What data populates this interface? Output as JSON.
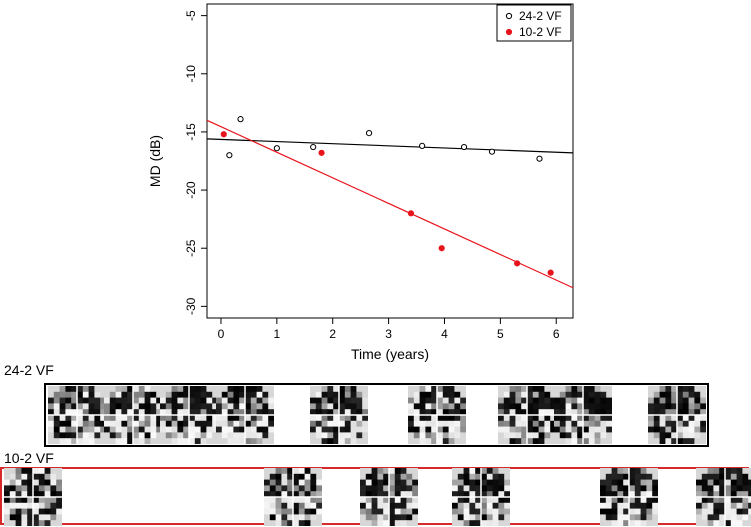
{
  "chart_data": {
    "type": "scatter",
    "xlabel": "Time (years)",
    "ylabel": "MD (dB)",
    "xlim": [
      -0.25,
      6.3
    ],
    "ylim": [
      -31,
      -4
    ],
    "xticks": [
      0,
      1,
      2,
      3,
      4,
      5,
      6
    ],
    "yticks": [
      -5,
      -10,
      -15,
      -20,
      -25,
      -30
    ],
    "legend_position": "top-right",
    "series": [
      {
        "name": "24-2 VF",
        "marker": "open-circle",
        "color": "#000000",
        "x": [
          0.15,
          0.35,
          1.0,
          1.65,
          2.65,
          3.6,
          4.35,
          4.85,
          5.7
        ],
        "y": [
          -17.0,
          -13.9,
          -16.4,
          -16.3,
          -15.1,
          -16.2,
          -16.3,
          -16.7,
          -17.3
        ],
        "trend": {
          "x": [
            -0.25,
            6.3
          ],
          "y": [
            -15.6,
            -16.8
          ]
        }
      },
      {
        "name": "10-2 VF",
        "marker": "filled-circle",
        "color": "#e8141c",
        "x": [
          0.05,
          1.8,
          3.4,
          3.95,
          5.3,
          5.9
        ],
        "y": [
          -15.2,
          -16.8,
          -22.0,
          -25.0,
          -26.3,
          -27.1
        ],
        "trend": {
          "x": [
            -0.25,
            6.3
          ],
          "y": [
            -14.0,
            -28.4
          ]
        }
      }
    ]
  },
  "strips": {
    "top_label": "24-2 VF",
    "bottom_label": "10-2 VF",
    "top_color": "#000000",
    "bottom_color": "#d62a2a",
    "top_count": 9,
    "bottom_count": 6
  }
}
